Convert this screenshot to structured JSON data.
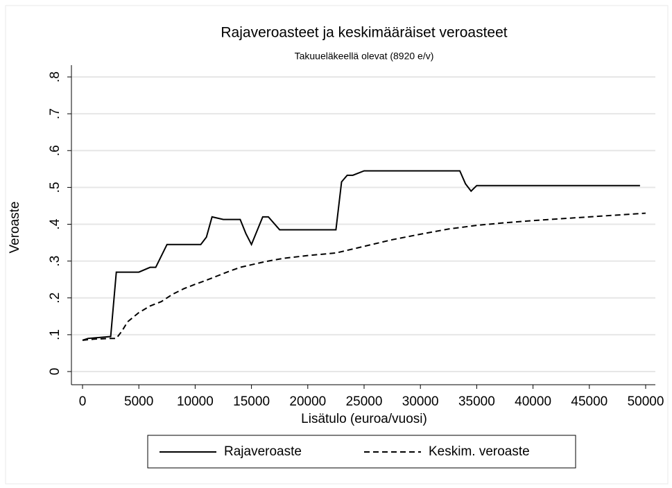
{
  "chart_data": {
    "type": "line",
    "title": "Rajaveroasteet ja keskimääräiset veroasteet",
    "subtitle": "Takuueläkeellä olevat (8920 e/v)",
    "xlabel": "Lisätulo (euroa/vuosi)",
    "ylabel": "Veroaste",
    "xlim": [
      0,
      50000
    ],
    "ylim": [
      0,
      0.8
    ],
    "xticks": [
      0,
      5000,
      10000,
      15000,
      20000,
      25000,
      30000,
      35000,
      40000,
      45000,
      50000
    ],
    "yticks": [
      0,
      {
        "value": 0.1,
        "label": ".1"
      },
      {
        "value": 0.2,
        "label": ".2"
      },
      {
        "value": 0.3,
        "label": ".3"
      },
      {
        "value": 0.4,
        "label": ".4"
      },
      {
        "value": 0.5,
        "label": ".5"
      },
      {
        "value": 0.6,
        "label": ".6"
      },
      {
        "value": 0.7,
        "label": ".7"
      },
      {
        "value": 0.8,
        "label": ".8"
      }
    ],
    "grid": true,
    "legend": "bottom",
    "series": [
      {
        "name": "Rajaveroaste",
        "color": "#000000",
        "style": "solid",
        "x": [
          0,
          500,
          2500,
          3000,
          5000,
          6000,
          6500,
          7500,
          10500,
          11000,
          11500,
          12500,
          14000,
          14500,
          15000,
          16000,
          16500,
          17500,
          22500,
          23000,
          23500,
          24000,
          25000,
          33500,
          34000,
          34500,
          35000,
          49500
        ],
        "values": [
          0.085,
          0.09,
          0.095,
          0.27,
          0.27,
          0.283,
          0.283,
          0.345,
          0.345,
          0.365,
          0.42,
          0.413,
          0.413,
          0.375,
          0.345,
          0.42,
          0.42,
          0.385,
          0.385,
          0.515,
          0.533,
          0.533,
          0.545,
          0.545,
          0.51,
          0.49,
          0.505,
          0.505
        ]
      },
      {
        "name": "Keskim. veroaste",
        "color": "#000000",
        "style": "dashed",
        "x": [
          0,
          1000,
          2500,
          3000,
          3500,
          4000,
          5000,
          6000,
          7000,
          8000,
          9000,
          10000,
          11000,
          12000,
          13000,
          14000,
          15000,
          16000,
          17000,
          18000,
          20000,
          22500,
          25000,
          27500,
          30000,
          32500,
          35000,
          37500,
          40000,
          42500,
          45000,
          47500,
          50000
        ],
        "values": [
          0.085,
          0.088,
          0.09,
          0.09,
          0.11,
          0.135,
          0.16,
          0.178,
          0.19,
          0.21,
          0.225,
          0.237,
          0.248,
          0.26,
          0.272,
          0.283,
          0.29,
          0.297,
          0.303,
          0.308,
          0.315,
          0.322,
          0.34,
          0.358,
          0.373,
          0.387,
          0.397,
          0.404,
          0.41,
          0.415,
          0.42,
          0.425,
          0.43
        ]
      }
    ]
  }
}
